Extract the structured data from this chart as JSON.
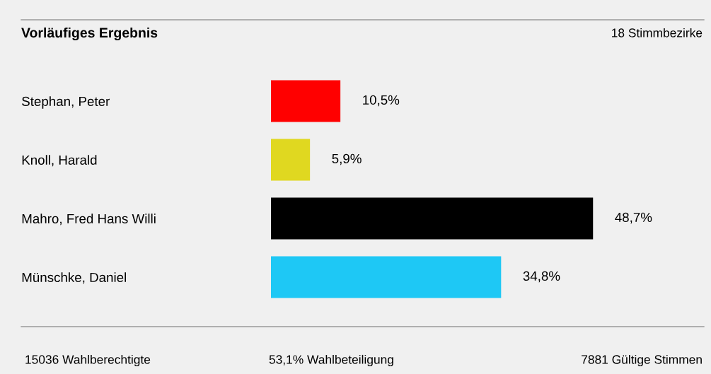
{
  "chart_data": {
    "type": "bar",
    "orientation": "horizontal",
    "title": "Vorläufiges Ergebnis",
    "subtitle": "18 Stimmbezirke",
    "categories": [
      "Stephan, Peter",
      "Knoll, Harald",
      "Mahro, Fred Hans Willi",
      "Münschke, Daniel"
    ],
    "values": [
      10.5,
      5.9,
      48.7,
      34.8
    ],
    "colors": [
      "#ff0000",
      "#e0d820",
      "#000000",
      "#1ec8f5"
    ],
    "value_labels": [
      "10,5%",
      "5,9%",
      "48,7%",
      "34,8%"
    ],
    "tick_labels": "y",
    "grid": false,
    "legend": false,
    "annotations": [
      "15036 Wahlberechtigte",
      "53,1% Wahlbeteiligung",
      "7881 Gültige Stimmen"
    ]
  }
}
